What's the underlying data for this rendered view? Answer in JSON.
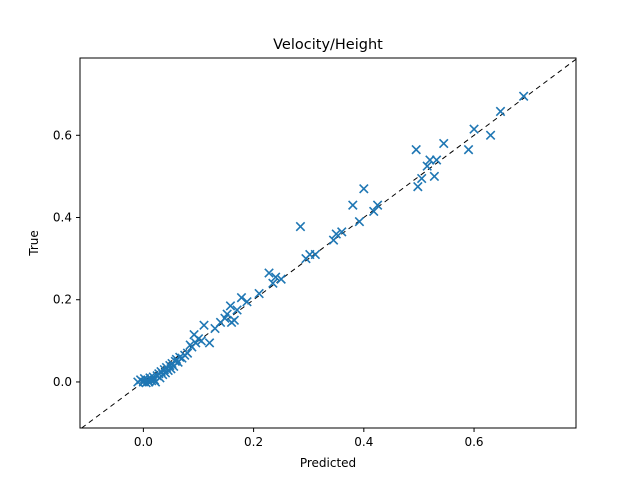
{
  "chart_data": {
    "type": "scatter",
    "title": "Velocity/Height",
    "xlabel": "Predicted",
    "ylabel": "True",
    "xlim": [
      -0.115,
      0.785
    ],
    "ylim": [
      -0.112,
      0.788
    ],
    "xticks": [
      0.0,
      0.2,
      0.4,
      0.6
    ],
    "yticks": [
      0.0,
      0.2,
      0.4,
      0.6
    ],
    "xtick_labels": [
      "0.0",
      "0.2",
      "0.4",
      "0.6"
    ],
    "ytick_labels": [
      "0.0",
      "0.2",
      "0.4",
      "0.6"
    ],
    "grid": false,
    "legend": false,
    "marker": "x",
    "marker_color": "#1f77b4",
    "reference_line": {
      "style": "dashed",
      "color": "#000000",
      "slope": 1,
      "intercept": 0
    },
    "series": [
      {
        "points": [
          [
            -0.01,
            0.0
          ],
          [
            -0.005,
            0.005
          ],
          [
            0.0,
            0.0
          ],
          [
            0.002,
            0.008
          ],
          [
            0.005,
            -0.002
          ],
          [
            0.008,
            0.004
          ],
          [
            0.01,
            0.0
          ],
          [
            0.012,
            0.01
          ],
          [
            0.015,
            0.003
          ],
          [
            0.018,
            0.012
          ],
          [
            0.02,
            0.005
          ],
          [
            0.022,
            0.0
          ],
          [
            0.025,
            0.015
          ],
          [
            0.028,
            0.02
          ],
          [
            0.03,
            0.01
          ],
          [
            0.032,
            0.025
          ],
          [
            0.035,
            0.018
          ],
          [
            0.038,
            0.03
          ],
          [
            0.04,
            0.022
          ],
          [
            0.042,
            0.035
          ],
          [
            0.045,
            0.028
          ],
          [
            0.048,
            0.04
          ],
          [
            0.05,
            0.032
          ],
          [
            0.052,
            0.045
          ],
          [
            0.055,
            0.038
          ],
          [
            0.058,
            0.05
          ],
          [
            0.06,
            0.055
          ],
          [
            0.063,
            0.048
          ],
          [
            0.066,
            0.06
          ],
          [
            0.07,
            0.058
          ],
          [
            0.075,
            0.065
          ],
          [
            0.08,
            0.07
          ],
          [
            0.085,
            0.09
          ],
          [
            0.088,
            0.085
          ],
          [
            0.092,
            0.115
          ],
          [
            0.095,
            0.095
          ],
          [
            0.1,
            0.105
          ],
          [
            0.105,
            0.1
          ],
          [
            0.11,
            0.138
          ],
          [
            0.12,
            0.095
          ],
          [
            0.13,
            0.13
          ],
          [
            0.14,
            0.145
          ],
          [
            0.148,
            0.155
          ],
          [
            0.152,
            0.165
          ],
          [
            0.158,
            0.185
          ],
          [
            0.16,
            0.145
          ],
          [
            0.165,
            0.15
          ],
          [
            0.17,
            0.175
          ],
          [
            0.178,
            0.205
          ],
          [
            0.188,
            0.195
          ],
          [
            0.21,
            0.215
          ],
          [
            0.228,
            0.265
          ],
          [
            0.235,
            0.24
          ],
          [
            0.24,
            0.255
          ],
          [
            0.25,
            0.25
          ],
          [
            0.285,
            0.378
          ],
          [
            0.295,
            0.3
          ],
          [
            0.302,
            0.31
          ],
          [
            0.312,
            0.31
          ],
          [
            0.345,
            0.345
          ],
          [
            0.35,
            0.36
          ],
          [
            0.36,
            0.365
          ],
          [
            0.38,
            0.43
          ],
          [
            0.392,
            0.39
          ],
          [
            0.4,
            0.47
          ],
          [
            0.418,
            0.415
          ],
          [
            0.425,
            0.43
          ],
          [
            0.495,
            0.565
          ],
          [
            0.498,
            0.475
          ],
          [
            0.505,
            0.495
          ],
          [
            0.515,
            0.525
          ],
          [
            0.52,
            0.54
          ],
          [
            0.528,
            0.5
          ],
          [
            0.532,
            0.54
          ],
          [
            0.545,
            0.58
          ],
          [
            0.59,
            0.565
          ],
          [
            0.6,
            0.615
          ],
          [
            0.63,
            0.6
          ],
          [
            0.648,
            0.658
          ],
          [
            0.69,
            0.695
          ]
        ]
      }
    ]
  }
}
